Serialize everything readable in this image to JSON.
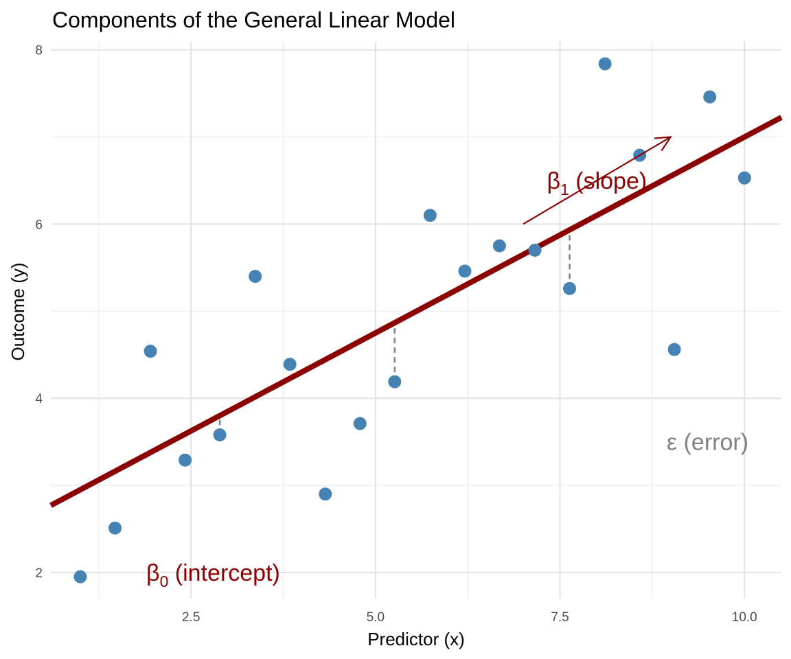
{
  "chart_data": {
    "type": "scatter",
    "title": "Components of the General Linear Model",
    "xlabel": "Predictor (x)",
    "ylabel": "Outcome (y)",
    "xlim": [
      0.6,
      10.5
    ],
    "ylim": [
      1.7,
      8.1
    ],
    "x_ticks": [
      2.5,
      5.0,
      7.5,
      10.0
    ],
    "x_tick_labels": [
      "2.5",
      "5.0",
      "7.5",
      "10.0"
    ],
    "x_minor_ticks": [
      1.25,
      3.75,
      6.25,
      8.75
    ],
    "y_ticks": [
      2,
      4,
      6,
      8
    ],
    "y_tick_labels": [
      "2",
      "4",
      "6",
      "8"
    ],
    "y_minor_ticks": [
      3,
      5,
      7
    ],
    "grid": true,
    "point_color": "#4682b4",
    "line_color": "#8b0000",
    "residual_color": "#808080",
    "points": [
      {
        "x": 1.0,
        "y": 1.95
      },
      {
        "x": 1.47,
        "y": 2.51
      },
      {
        "x": 1.95,
        "y": 4.54
      },
      {
        "x": 2.42,
        "y": 3.29
      },
      {
        "x": 2.89,
        "y": 3.58
      },
      {
        "x": 3.37,
        "y": 5.4
      },
      {
        "x": 3.84,
        "y": 4.39
      },
      {
        "x": 4.32,
        "y": 2.9
      },
      {
        "x": 4.79,
        "y": 3.71
      },
      {
        "x": 5.26,
        "y": 4.19
      },
      {
        "x": 5.74,
        "y": 6.1
      },
      {
        "x": 6.21,
        "y": 5.46
      },
      {
        "x": 6.68,
        "y": 5.75
      },
      {
        "x": 7.16,
        "y": 5.7
      },
      {
        "x": 7.63,
        "y": 5.26
      },
      {
        "x": 8.11,
        "y": 7.84
      },
      {
        "x": 8.58,
        "y": 6.79
      },
      {
        "x": 9.05,
        "y": 4.56
      },
      {
        "x": 9.53,
        "y": 7.46
      },
      {
        "x": 10.0,
        "y": 6.53
      }
    ],
    "regression_line": {
      "intercept": 2.5,
      "slope": 0.45
    },
    "residual_segments": [
      {
        "x": 2.89,
        "y_from": 3.58,
        "y_to": 3.8
      },
      {
        "x": 5.26,
        "y_from": 4.19,
        "y_to": 4.87
      },
      {
        "x": 7.63,
        "y_from": 5.26,
        "y_to": 5.93
      }
    ],
    "slope_arrow": {
      "x_from": 7.0,
      "y_from": 6.0,
      "x_to": 9.0,
      "y_to": 7.0
    },
    "annotations": {
      "intercept": {
        "symbol": "β",
        "subscript": "0",
        "text": " (intercept)",
        "x": 2.8,
        "y": 2.0
      },
      "slope": {
        "symbol": "β",
        "subscript": "1",
        "text": " (slope)",
        "x": 8.0,
        "y": 6.5
      },
      "error": {
        "symbol": "ε",
        "text": " (error)",
        "x": 9.5,
        "y": 3.5
      }
    }
  }
}
